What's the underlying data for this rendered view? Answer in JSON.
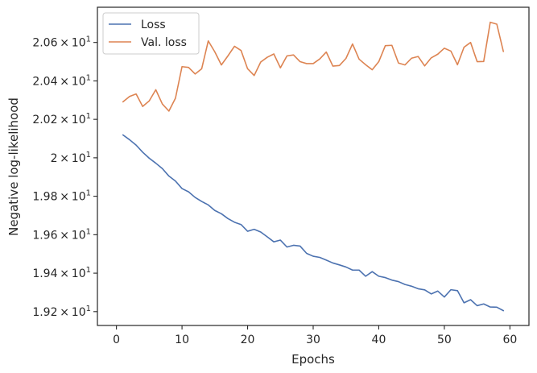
{
  "chart_data": {
    "type": "line",
    "title": "",
    "xlabel": "Epochs",
    "ylabel": "Negative log-likelihood",
    "xlim": [
      -2.9,
      62.9
    ],
    "ylim": [
      19.128,
      20.783
    ],
    "x_ticks": [
      0,
      10,
      20,
      30,
      40,
      50,
      60
    ],
    "y_ticks": [
      19.2,
      19.4,
      19.6,
      19.8,
      20.0,
      20.2,
      20.4,
      20.6
    ],
    "y_tick_labels": [
      {
        "mantissa": "1.92",
        "sup": "1"
      },
      {
        "mantissa": "1.94",
        "sup": "1"
      },
      {
        "mantissa": "1.96",
        "sup": "1"
      },
      {
        "mantissa": "1.98",
        "sup": "1"
      },
      {
        "mantissa": "2",
        "sup": "1"
      },
      {
        "mantissa": "2.02",
        "sup": "1"
      },
      {
        "mantissa": "2.04",
        "sup": "1"
      },
      {
        "mantissa": "2.06",
        "sup": "1"
      }
    ],
    "grid": false,
    "legend_position": "upper-left",
    "x": [
      1,
      2,
      3,
      4,
      5,
      6,
      7,
      8,
      9,
      10,
      11,
      12,
      13,
      14,
      15,
      16,
      17,
      18,
      19,
      20,
      21,
      22,
      23,
      24,
      25,
      26,
      27,
      28,
      29,
      30,
      31,
      32,
      33,
      34,
      35,
      36,
      37,
      38,
      39,
      40,
      41,
      42,
      43,
      44,
      45,
      46,
      47,
      48,
      49,
      50,
      51,
      52,
      53,
      54,
      55,
      56,
      57,
      58,
      59
    ],
    "series": [
      {
        "name": "Loss",
        "color": "#4c72b0",
        "values": [
          20.119,
          20.094,
          20.066,
          20.029,
          19.998,
          19.972,
          19.944,
          19.905,
          19.879,
          19.84,
          19.823,
          19.794,
          19.773,
          19.755,
          19.726,
          19.709,
          19.684,
          19.665,
          19.653,
          19.618,
          19.628,
          19.614,
          19.589,
          19.563,
          19.572,
          19.536,
          19.545,
          19.541,
          19.503,
          19.488,
          19.482,
          19.468,
          19.453,
          19.443,
          19.432,
          19.416,
          19.416,
          19.384,
          19.408,
          19.384,
          19.377,
          19.364,
          19.356,
          19.341,
          19.332,
          19.319,
          19.313,
          19.292,
          19.307,
          19.276,
          19.314,
          19.309,
          19.246,
          19.262,
          19.231,
          19.24,
          19.224,
          19.223,
          19.205
        ]
      },
      {
        "name": "Val. loss",
        "color": "#dd8452",
        "values": [
          20.291,
          20.319,
          20.332,
          20.267,
          20.296,
          20.354,
          20.28,
          20.243,
          20.31,
          20.474,
          20.47,
          20.436,
          20.463,
          20.608,
          20.551,
          20.483,
          20.53,
          20.58,
          20.558,
          20.463,
          20.428,
          20.498,
          20.523,
          20.54,
          20.468,
          20.53,
          20.535,
          20.5,
          20.49,
          20.49,
          20.514,
          20.55,
          20.477,
          20.48,
          20.517,
          20.592,
          20.513,
          20.484,
          20.458,
          20.5,
          20.583,
          20.585,
          20.493,
          20.483,
          20.518,
          20.527,
          20.478,
          20.52,
          20.539,
          20.57,
          20.555,
          20.484,
          20.575,
          20.6,
          20.5,
          20.501,
          20.705,
          20.695,
          20.553
        ]
      }
    ]
  }
}
